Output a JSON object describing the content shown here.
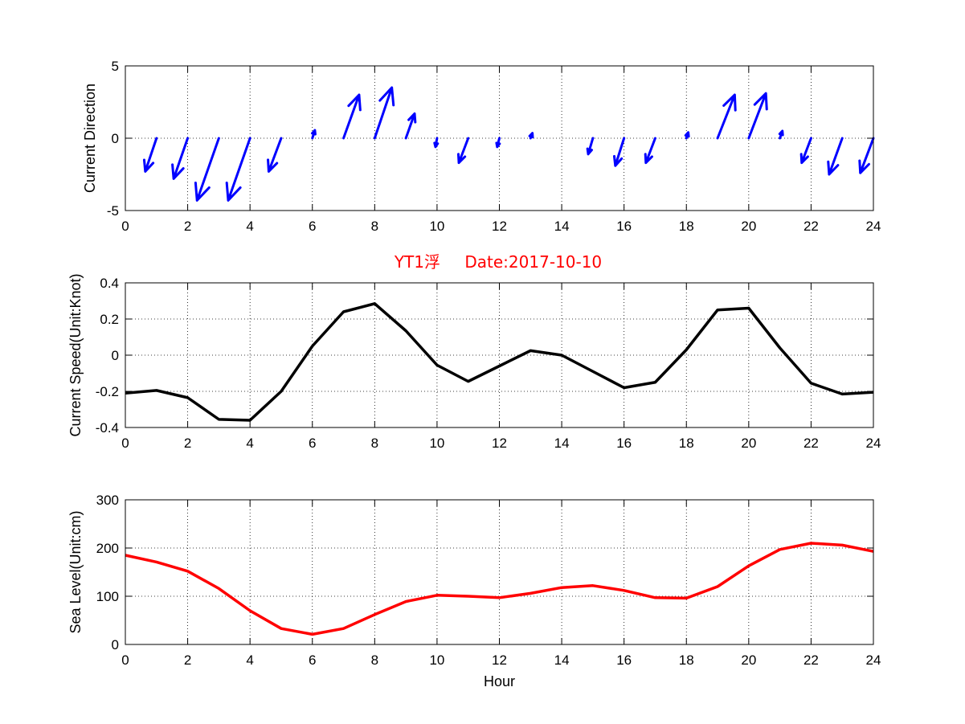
{
  "colors": {
    "direction": "#0000ff",
    "speed": "#000000",
    "sea_level": "#ff0000",
    "title": "#ff0000"
  },
  "chart_data": [
    {
      "type": "quiver",
      "ylabel": "Current Direction",
      "xlim": [
        0,
        24
      ],
      "ylim": [
        -5,
        5
      ],
      "xticks": [
        "0",
        "2",
        "4",
        "6",
        "8",
        "10",
        "12",
        "14",
        "16",
        "18",
        "20",
        "22",
        "24"
      ],
      "yticks": [
        "-5",
        "0",
        "5"
      ],
      "grid": true,
      "vectors": [
        {
          "x": 1,
          "u": -0.36,
          "v": -2.3
        },
        {
          "x": 2,
          "u": -0.45,
          "v": -2.8
        },
        {
          "x": 3,
          "u": -0.7,
          "v": -4.3
        },
        {
          "x": 4,
          "u": -0.7,
          "v": -4.3
        },
        {
          "x": 5,
          "u": -0.4,
          "v": -2.3
        },
        {
          "x": 6,
          "u": 0.08,
          "v": 0.55
        },
        {
          "x": 7,
          "u": 0.5,
          "v": 3.0
        },
        {
          "x": 8,
          "u": 0.55,
          "v": 3.5
        },
        {
          "x": 9,
          "u": 0.28,
          "v": 1.7
        },
        {
          "x": 10,
          "u": -0.05,
          "v": -0.6
        },
        {
          "x": 11,
          "u": -0.3,
          "v": -1.7
        },
        {
          "x": 12,
          "u": -0.07,
          "v": -0.6
        },
        {
          "x": 13,
          "u": 0.06,
          "v": 0.35
        },
        {
          "x": 15,
          "u": -0.15,
          "v": -1.1
        },
        {
          "x": 16,
          "u": -0.28,
          "v": -1.9
        },
        {
          "x": 17,
          "u": -0.3,
          "v": -1.7
        },
        {
          "x": 18,
          "u": 0.06,
          "v": 0.4
        },
        {
          "x": 19,
          "u": 0.55,
          "v": 3.0
        },
        {
          "x": 20,
          "u": 0.55,
          "v": 3.1
        },
        {
          "x": 21,
          "u": 0.08,
          "v": 0.5
        },
        {
          "x": 22,
          "u": -0.3,
          "v": -1.7
        },
        {
          "x": 23,
          "u": -0.42,
          "v": -2.5
        },
        {
          "x": 24,
          "u": -0.42,
          "v": -2.4
        }
      ]
    },
    {
      "type": "line",
      "title_main": "YT1浮",
      "title_date": "Date:2017-10-10",
      "ylabel": "Current Speed(Unit:Knot)",
      "xlim": [
        0,
        24
      ],
      "ylim": [
        -0.4,
        0.4
      ],
      "xticks": [
        "0",
        "2",
        "4",
        "6",
        "8",
        "10",
        "12",
        "14",
        "16",
        "18",
        "20",
        "22",
        "24"
      ],
      "yticks": [
        "-0.4",
        "-0.2",
        "0",
        "0.2",
        "0.4"
      ],
      "grid": true,
      "x": [
        0,
        1,
        2,
        3,
        4,
        5,
        6,
        7,
        8,
        9,
        10,
        11,
        12,
        13,
        14,
        15,
        16,
        17,
        18,
        19,
        20,
        21,
        22,
        23,
        24
      ],
      "values": [
        -0.21,
        -0.195,
        -0.235,
        -0.355,
        -0.36,
        -0.2,
        0.05,
        0.24,
        0.285,
        0.135,
        -0.055,
        -0.145,
        -0.06,
        0.025,
        0.0,
        -0.09,
        -0.18,
        -0.15,
        0.03,
        0.25,
        0.26,
        0.04,
        -0.155,
        -0.215,
        -0.205
      ]
    },
    {
      "type": "line",
      "ylabel": "Sea Level(Unit:cm)",
      "xlabel": "Hour",
      "xlim": [
        0,
        24
      ],
      "ylim": [
        0,
        300
      ],
      "xticks": [
        "0",
        "2",
        "4",
        "6",
        "8",
        "10",
        "12",
        "14",
        "16",
        "18",
        "20",
        "22",
        "24"
      ],
      "yticks": [
        "0",
        "100",
        "200",
        "300"
      ],
      "grid": true,
      "x": [
        0,
        1,
        2,
        3,
        4,
        5,
        6,
        7,
        8,
        9,
        10,
        11,
        12,
        13,
        14,
        15,
        16,
        17,
        18,
        19,
        20,
        21,
        22,
        23,
        24
      ],
      "values": [
        185,
        171,
        152,
        116,
        70,
        33,
        21,
        33,
        62,
        89,
        102,
        100,
        97,
        106,
        118,
        122,
        112,
        97,
        96,
        120,
        163,
        197,
        210,
        206,
        193
      ]
    }
  ]
}
